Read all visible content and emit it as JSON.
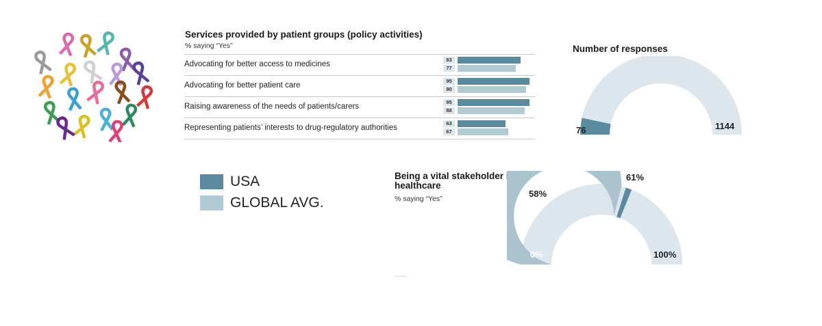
{
  "colors": {
    "usa": "#5a8aa0",
    "global": "#b1cad6",
    "gauge_track": "#dce6ec",
    "gauge_fill_vital": "#aac3cf"
  },
  "ribbon_colors": [
    "#9a9a9a",
    "#d96aae",
    "#c9a227",
    "#53b7ae",
    "#8c5bb0",
    "#e6c23a",
    "#d0d0d0",
    "#b99ad8",
    "#5b3fa0",
    "#f0a030",
    "#3aa0d0",
    "#ea6a9a",
    "#8a4a1a",
    "#d23c3c",
    "#3aa050",
    "#d9c020",
    "#4ab0d8",
    "#2a8a5a",
    "#6a2a8a",
    "#e0407a"
  ],
  "bar_chart": {
    "title": "Services provided by patient groups (policy activities)",
    "subtitle": "% saying “Yes”"
  },
  "legend": [
    {
      "label": "USA",
      "color": "#5a8aa0"
    },
    {
      "label": "GLOBAL AVG.",
      "color": "#b1cad6"
    }
  ],
  "responses_gauge": {
    "title": "Number of responses",
    "value": 76,
    "max": 1144,
    "value_label": "76",
    "max_label": "1144"
  },
  "vital_gauge": {
    "title": "Being a vital stakeholder in healthcare",
    "subtitle": "% saying “Yes”",
    "global_value": 58,
    "usa_value": 61,
    "global_label": "58%",
    "usa_label": "61%",
    "min_label": "0%",
    "max_label": "100%"
  },
  "chart_data": [
    {
      "type": "bar",
      "title": "Services provided by patient groups (policy activities)",
      "subtitle": "% saying “Yes”",
      "categories": [
        "Advocating for better access to medicines",
        "Advocating for better patient care",
        "Raising awareness of the needs of patients/carers",
        "Representing patients’ interests to drug-regulatory authorities"
      ],
      "series": [
        {
          "name": "USA",
          "values": [
            83,
            95,
            95,
            63
          ]
        },
        {
          "name": "GLOBAL AVG.",
          "values": [
            77,
            90,
            88,
            67
          ]
        }
      ],
      "xlim": [
        0,
        100
      ]
    },
    {
      "type": "gauge",
      "title": "Number of responses",
      "value": 76,
      "range": [
        0,
        1144
      ]
    },
    {
      "type": "gauge",
      "title": "Being a vital stakeholder in healthcare",
      "subtitle": "% saying “Yes”",
      "series": [
        {
          "name": "GLOBAL AVG.",
          "value": 58
        },
        {
          "name": "USA",
          "value": 61
        }
      ],
      "range": [
        0,
        100
      ]
    }
  ]
}
